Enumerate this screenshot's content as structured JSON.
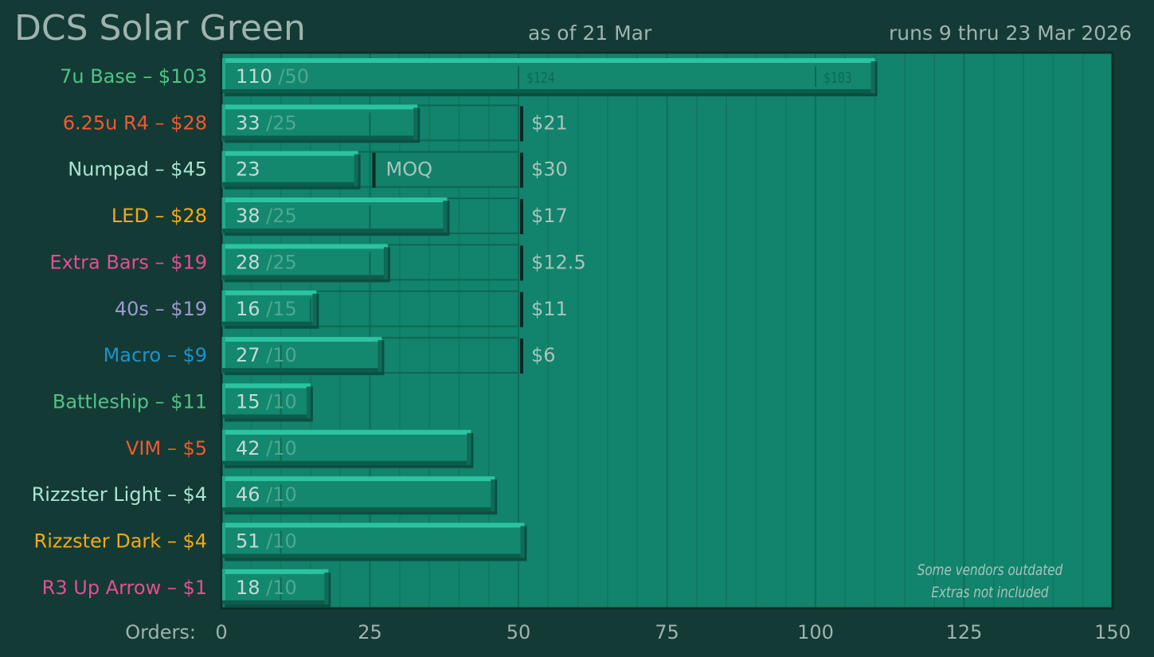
{
  "header": {
    "title": "DCS Solar Green",
    "as_of": "as of 21 Mar",
    "runs": "runs 9 thru 23 Mar 2026"
  },
  "notes": [
    "Some vendors outdated",
    "Extras not included"
  ],
  "colors": {
    "background": "#143a35",
    "plot_bg": "#12836c",
    "bar_face": "#14876f",
    "bar_top": "#2cc3a0",
    "bar_shadow": "#0c5c4c",
    "frame": "#0c2e29",
    "text_muted": "#9fb3ad"
  },
  "chart_data": {
    "type": "bar",
    "orientation": "horizontal",
    "xlabel": "Orders:",
    "xlim": [
      0,
      150
    ],
    "xticks": [
      0,
      25,
      50,
      75,
      100,
      125,
      150
    ],
    "grid": true,
    "categories": [
      {
        "label": "7u Base – $103",
        "color": "#4fc486",
        "orders": 110,
        "moq": 50,
        "moq_label": "/50",
        "price_marks": [
          {
            "at": 50,
            "label": "$124"
          },
          {
            "at": 100,
            "label": "$103"
          }
        ]
      },
      {
        "label": "6.25u R4 – $28",
        "color": "#ef5a2f",
        "orders": 33,
        "moq": 25,
        "moq_label": "/25",
        "tier_box": 50,
        "tier_price": "$21"
      },
      {
        "label": "Numpad – $45",
        "color": "#a8e5cf",
        "orders": 23,
        "moq_label": "",
        "moq_text": "MOQ",
        "moq_box": [
          25,
          50
        ],
        "tier_box": 50,
        "tier_price": "$30"
      },
      {
        "label": "LED – $28",
        "color": "#f2aa14",
        "orders": 38,
        "moq": 25,
        "moq_label": "/25",
        "tier_box": 50,
        "tier_price": "$17"
      },
      {
        "label": "Extra Bars – $19",
        "color": "#e24f93",
        "orders": 28,
        "moq": 25,
        "moq_label": "/25",
        "tier_box": 50,
        "tier_price": "$12.5"
      },
      {
        "label": "40s – $19",
        "color": "#9c9ad0",
        "orders": 16,
        "moq": 15,
        "moq_label": "/15",
        "tier_box": 50,
        "tier_price": "$11"
      },
      {
        "label": "Macro – $9",
        "color": "#1a94cc",
        "orders": 27,
        "moq": 10,
        "moq_label": "/10",
        "tier_box": 50,
        "tier_price": "$6"
      },
      {
        "label": "Battleship – $11",
        "color": "#4fc486",
        "orders": 15,
        "moq": 10,
        "moq_label": "/10"
      },
      {
        "label": "VIM – $5",
        "color": "#ef5a2f",
        "orders": 42,
        "moq": 10,
        "moq_label": "/10"
      },
      {
        "label": "Rizzster Light – $4",
        "color": "#a8e5cf",
        "orders": 46,
        "moq": 10,
        "moq_label": "/10"
      },
      {
        "label": "Rizzster Dark – $4",
        "color": "#f2aa14",
        "orders": 51,
        "moq": 10,
        "moq_label": "/10"
      },
      {
        "label": "R3 Up Arrow – $1",
        "color": "#e24f93",
        "orders": 18,
        "moq": 10,
        "moq_label": "/10"
      }
    ]
  }
}
